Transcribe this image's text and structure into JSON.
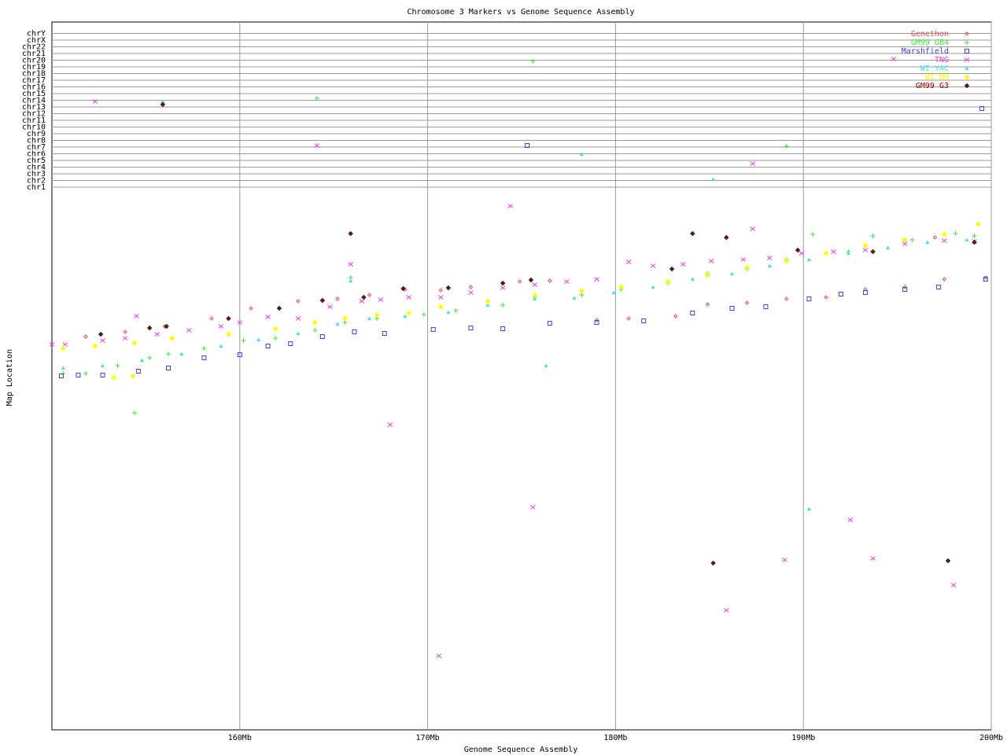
{
  "chart_data": {
    "type": "scatter",
    "title": "Chromosome 3 Markers vs Genome Sequence Assembly",
    "x_label": "Genome Sequence Assembly",
    "y_label": "Map Location",
    "xlim": [
      150,
      200
    ],
    "xticks": [
      {
        "value": 160,
        "label": "160Mb"
      },
      {
        "value": 170,
        "label": "170Mb"
      },
      {
        "value": 180,
        "label": "180Mb"
      },
      {
        "value": 190,
        "label": "190Mb"
      },
      {
        "value": 200,
        "label": "200Mb"
      }
    ],
    "ylim": [
      0,
      900
    ],
    "yticks": [
      {
        "value": 690,
        "label": "chr1"
      },
      {
        "value": 698.5,
        "label": "chr2"
      },
      {
        "value": 707,
        "label": "chr3"
      },
      {
        "value": 715.5,
        "label": "chr4"
      },
      {
        "value": 724,
        "label": "chr5"
      },
      {
        "value": 732.5,
        "label": "chr6"
      },
      {
        "value": 741,
        "label": "chr7"
      },
      {
        "value": 749.5,
        "label": "chr8"
      },
      {
        "value": 758,
        "label": "chr9"
      },
      {
        "value": 766.5,
        "label": "chr10"
      },
      {
        "value": 775,
        "label": "chr11"
      },
      {
        "value": 783.5,
        "label": "chr12"
      },
      {
        "value": 792,
        "label": "chr13"
      },
      {
        "value": 800.5,
        "label": "chr14"
      },
      {
        "value": 809,
        "label": "chr15"
      },
      {
        "value": 817.5,
        "label": "chr16"
      },
      {
        "value": 826,
        "label": "chr17"
      },
      {
        "value": 834.5,
        "label": "chr18"
      },
      {
        "value": 843,
        "label": "chr19"
      },
      {
        "value": 851.5,
        "label": "chr20"
      },
      {
        "value": 860,
        "label": "chr21"
      },
      {
        "value": 868.5,
        "label": "chr22"
      },
      {
        "value": 877,
        "label": "chrX"
      },
      {
        "value": 885.5,
        "label": "chrY"
      }
    ],
    "grid": true,
    "legend": "top-right",
    "series": [
      {
        "name": "Genethon",
        "color": "#e05060",
        "marker": "diamond",
        "x": [
          151.8,
          153.9,
          156.0,
          158.5,
          160.6,
          163.1,
          165.2,
          166.9,
          168.8,
          170.7,
          172.3,
          174.9,
          176.5,
          179.0,
          180.7,
          183.2,
          184.9,
          187.0,
          189.1,
          191.2,
          193.3,
          195.4,
          197.5,
          199.7,
          197.0
        ],
        "y": [
          500,
          506,
          513,
          523,
          536,
          545,
          548,
          553,
          560,
          559,
          563,
          570,
          571,
          521,
          523,
          526,
          541,
          543,
          548,
          550,
          560,
          563,
          573,
          575,
          626
        ]
      },
      {
        "name": "GM99 GB4",
        "color": "#40e040",
        "marker": "plus",
        "x": [
          150.6,
          151.8,
          153.5,
          155.2,
          156.2,
          158.1,
          160.2,
          161.9,
          164.0,
          165.6,
          167.3,
          169.8,
          171.5,
          174.0,
          175.7,
          178.2,
          180.3,
          182.8,
          184.9,
          187.0,
          189.1,
          190.5,
          192.4,
          193.7,
          195.8,
          198.1,
          199.1,
          154.4,
          155.9,
          164.1,
          175.6,
          189.1,
          165.9
        ],
        "y": [
          453,
          453,
          463,
          473,
          478,
          485,
          495,
          498,
          508,
          518,
          523,
          528,
          533,
          540,
          550,
          553,
          560,
          568,
          580,
          586,
          598,
          630,
          608,
          628,
          623,
          631,
          628,
          403,
          798,
          803,
          850,
          742,
          575
        ]
      },
      {
        "name": "Marshfield",
        "color": "#4040d0",
        "marker": "square",
        "x": [
          150.5,
          151.4,
          152.7,
          154.6,
          156.2,
          158.1,
          160.0,
          161.5,
          162.7,
          164.4,
          166.1,
          167.7,
          170.3,
          172.3,
          174.0,
          176.5,
          179.0,
          181.5,
          184.1,
          186.2,
          188.0,
          190.3,
          192.0,
          193.3,
          195.4,
          197.2,
          199.7,
          199.5,
          175.3
        ],
        "y": [
          450,
          451,
          451,
          456,
          460,
          473,
          477,
          488,
          491,
          500,
          506,
          504,
          509,
          511,
          510,
          517,
          518,
          520,
          530,
          536,
          538,
          548,
          554,
          556,
          560,
          563,
          573,
          790,
          743
        ]
      },
      {
        "name": "TNG",
        "color": "#e040e0",
        "marker": "x",
        "x": [
          150.0,
          150.7,
          152.7,
          153.9,
          155.6,
          157.3,
          159.0,
          160.0,
          161.5,
          163.1,
          164.8,
          166.5,
          167.5,
          169.0,
          170.7,
          172.3,
          174.0,
          175.7,
          177.4,
          179.0,
          180.7,
          182.0,
          183.6,
          185.1,
          186.8,
          188.2,
          189.9,
          191.6,
          193.3,
          195.4,
          197.5,
          199.1,
          152.3,
          164.1,
          174.4,
          165.9,
          168.0,
          175.6,
          185.9,
          192.5,
          193.7,
          198.0,
          170.6,
          187.3,
          194.8,
          189.0,
          187.3,
          154.5
        ],
        "y": [
          490,
          490,
          495,
          498,
          503,
          508,
          513,
          518,
          525,
          523,
          538,
          545,
          547,
          550,
          550,
          556,
          562,
          566,
          570,
          573,
          595,
          590,
          592,
          596,
          598,
          600,
          606,
          608,
          610,
          618,
          622,
          621,
          799,
          743,
          666,
          592,
          388,
          283,
          152,
          267,
          218,
          184,
          94,
          720,
          853,
          216,
          637,
          526
        ]
      },
      {
        "name": "WI YAC",
        "color": "#40e0e0",
        "marker": "triangle",
        "x": [
          150.6,
          152.7,
          154.8,
          156.9,
          159.0,
          161.0,
          163.1,
          165.2,
          166.9,
          168.8,
          171.1,
          173.2,
          175.7,
          177.8,
          179.9,
          182.0,
          184.1,
          186.2,
          188.2,
          190.3,
          192.4,
          194.5,
          196.6,
          198.7,
          155.9,
          165.9,
          176.3,
          178.2,
          185.2,
          190.3
        ],
        "y": [
          460,
          463,
          470,
          478,
          488,
          496,
          504,
          516,
          523,
          526,
          531,
          540,
          548,
          549,
          556,
          563,
          573,
          580,
          590,
          598,
          606,
          613,
          620,
          623,
          798,
          571,
          463,
          732,
          700,
          281
        ]
      },
      {
        "name": "WI RH",
        "color": "#ffff00",
        "marker": "filled-diamond",
        "x": [
          150.6,
          152.3,
          154.4,
          156.4,
          159.4,
          161.9,
          164.0,
          165.6,
          167.3,
          169.0,
          170.7,
          173.2,
          175.7,
          178.2,
          180.3,
          182.8,
          184.9,
          187.0,
          189.1,
          191.2,
          193.3,
          195.4,
          197.5,
          199.3,
          153.3,
          154.3
        ],
        "y": [
          485,
          488,
          492,
          498,
          503,
          510,
          518,
          523,
          528,
          530,
          538,
          545,
          553,
          558,
          563,
          570,
          578,
          588,
          596,
          606,
          616,
          623,
          630,
          643,
          448,
          450
        ]
      },
      {
        "name": "GM99 G3",
        "color": "#a00000",
        "marker": "dark-diamond",
        "x": [
          152.6,
          155.2,
          156.1,
          159.4,
          162.1,
          164.4,
          166.6,
          168.7,
          171.1,
          174.0,
          175.5,
          183.0,
          184.1,
          185.9,
          189.7,
          193.7,
          199.1,
          155.9,
          165.9,
          185.2,
          197.7
        ],
        "y": [
          503,
          511,
          513,
          523,
          536,
          546,
          550,
          561,
          562,
          568,
          572,
          586,
          631,
          626,
          610,
          608,
          620,
          795,
          631,
          212,
          215
        ]
      }
    ]
  }
}
